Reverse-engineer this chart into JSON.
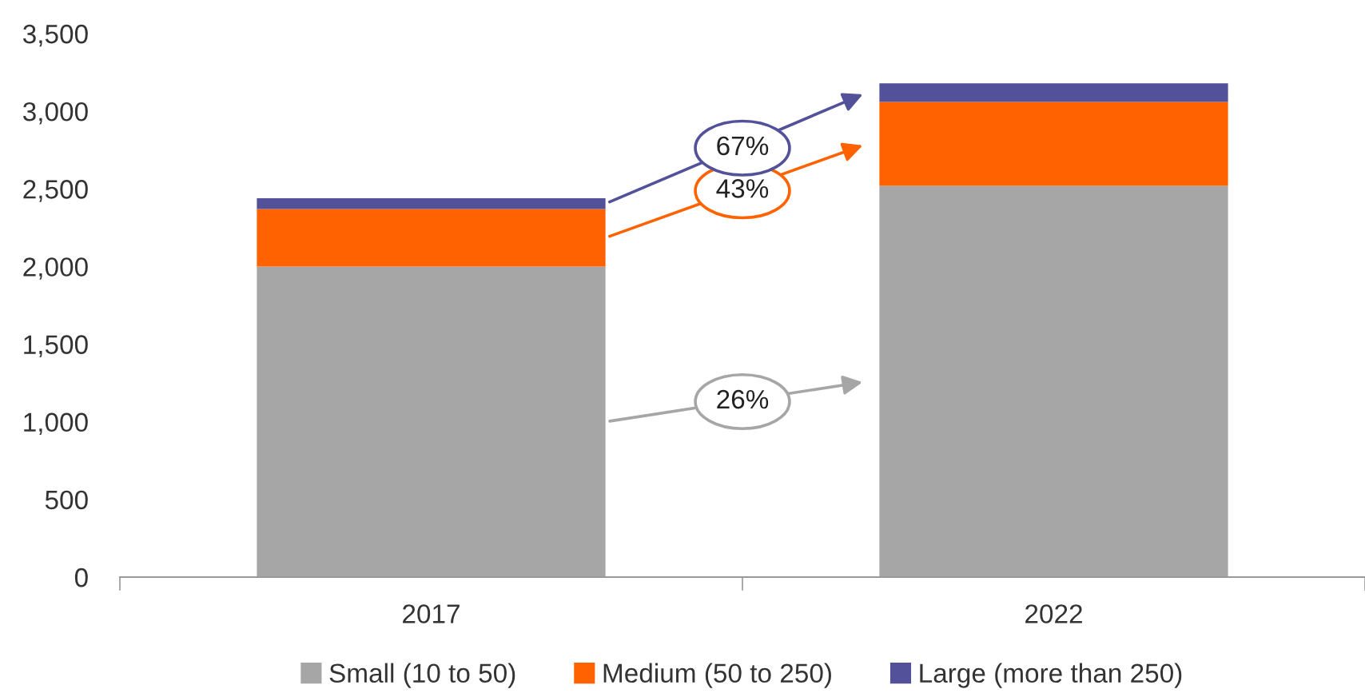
{
  "chart_data": {
    "type": "bar",
    "stacked": true,
    "categories": [
      "2017",
      "2022"
    ],
    "series": [
      {
        "name": "Small (10 to 50)",
        "color": "#a6a6a6",
        "values": [
          2000,
          2520
        ]
      },
      {
        "name": "Medium (50 to 250)",
        "color": "#ff6200",
        "values": [
          370,
          540
        ]
      },
      {
        "name": "Large (more than 250)",
        "color": "#525199",
        "values": [
          70,
          120
        ]
      }
    ],
    "annotations": [
      "26%",
      "43%",
      "67%"
    ],
    "ylim": [
      0,
      3500
    ],
    "yticks": [
      {
        "value": 0,
        "label": "0"
      },
      {
        "value": 500,
        "label": "500"
      },
      {
        "value": 1000,
        "label": "1,000"
      },
      {
        "value": 1500,
        "label": "1,500"
      },
      {
        "value": 2000,
        "label": "2,000"
      },
      {
        "value": 2500,
        "label": "2,500"
      },
      {
        "value": 3000,
        "label": "3,000"
      },
      {
        "value": 3500,
        "label": "3,500"
      }
    ],
    "grid": false,
    "legend": "bottom"
  }
}
